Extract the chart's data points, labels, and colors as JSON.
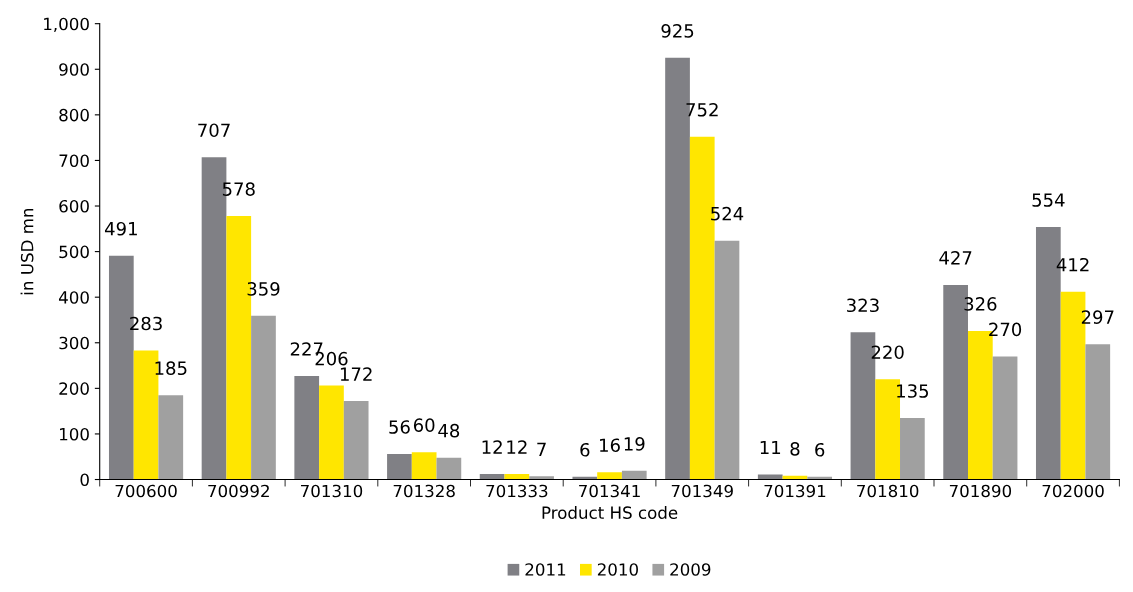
{
  "chart_data": {
    "type": "bar",
    "xlabel": "Product HS code",
    "ylabel": "in USD mn",
    "categories": [
      "700600",
      "700992",
      "701310",
      "701328",
      "701333",
      "701341",
      "701349",
      "701391",
      "701810",
      "701890",
      "702000"
    ],
    "series": [
      {
        "name": "2011",
        "color": "#808085",
        "values": [
          491,
          707,
          227,
          56,
          12,
          6,
          925,
          11,
          323,
          427,
          554
        ]
      },
      {
        "name": "2010",
        "color": "#ffe600",
        "values": [
          283,
          578,
          206,
          60,
          12,
          16,
          752,
          8,
          220,
          326,
          412
        ]
      },
      {
        "name": "2009",
        "color": "#a0a0a0",
        "values": [
          185,
          359,
          172,
          48,
          7,
          19,
          524,
          6,
          135,
          270,
          297
        ]
      }
    ],
    "ylim": [
      0,
      1000
    ],
    "yticks": [
      0,
      100,
      200,
      300,
      400,
      500,
      600,
      700,
      800,
      900,
      {
        "value": 1000,
        "label": "1,000"
      }
    ],
    "data_labels": true,
    "grid": false,
    "legend": "bottom"
  }
}
